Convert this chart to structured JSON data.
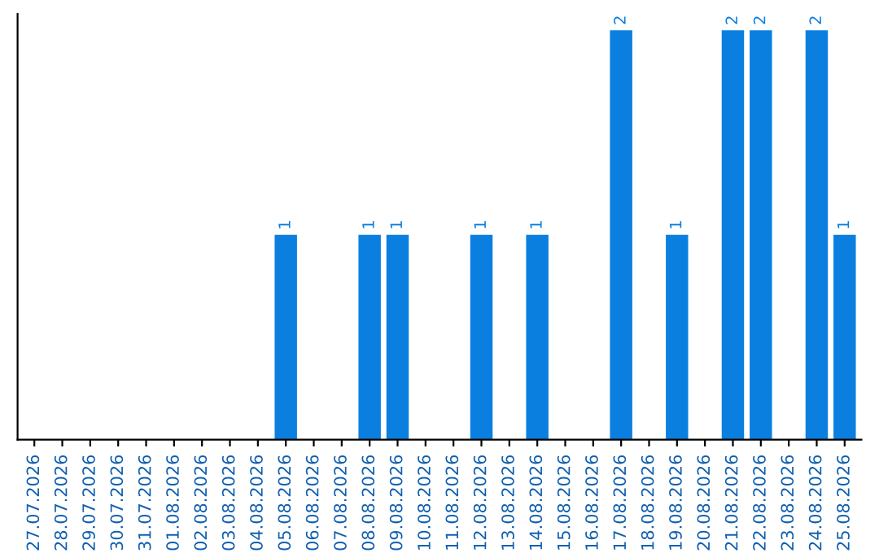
{
  "chart_data": {
    "type": "bar",
    "categories": [
      "27.07.2026",
      "28.07.2026",
      "29.07.2026",
      "30.07.2026",
      "31.07.2026",
      "01.08.2026",
      "02.08.2026",
      "03.08.2026",
      "04.08.2026",
      "05.08.2026",
      "06.08.2026",
      "07.08.2026",
      "08.08.2026",
      "09.08.2026",
      "10.08.2026",
      "11.08.2026",
      "12.08.2026",
      "13.08.2026",
      "14.08.2026",
      "15.08.2026",
      "16.08.2026",
      "17.08.2026",
      "18.08.2026",
      "19.08.2026",
      "20.08.2026",
      "21.08.2026",
      "22.08.2026",
      "23.08.2026",
      "24.08.2026",
      "25.08.2026"
    ],
    "values": [
      0,
      0,
      0,
      0,
      0,
      0,
      0,
      0,
      0,
      1,
      0,
      0,
      1,
      1,
      0,
      0,
      1,
      0,
      1,
      0,
      0,
      2,
      0,
      1,
      0,
      2,
      2,
      0,
      2,
      1
    ],
    "value_labels": [
      null,
      null,
      null,
      null,
      null,
      null,
      null,
      null,
      null,
      "1",
      null,
      null,
      "1",
      "1",
      null,
      null,
      "1",
      null,
      "1",
      null,
      null,
      "2",
      null,
      "1",
      null,
      "2",
      "2",
      null,
      "2",
      "1"
    ],
    "color": "#0a7fe0",
    "tick_labels": "x",
    "grid": false,
    "legend": false
  }
}
